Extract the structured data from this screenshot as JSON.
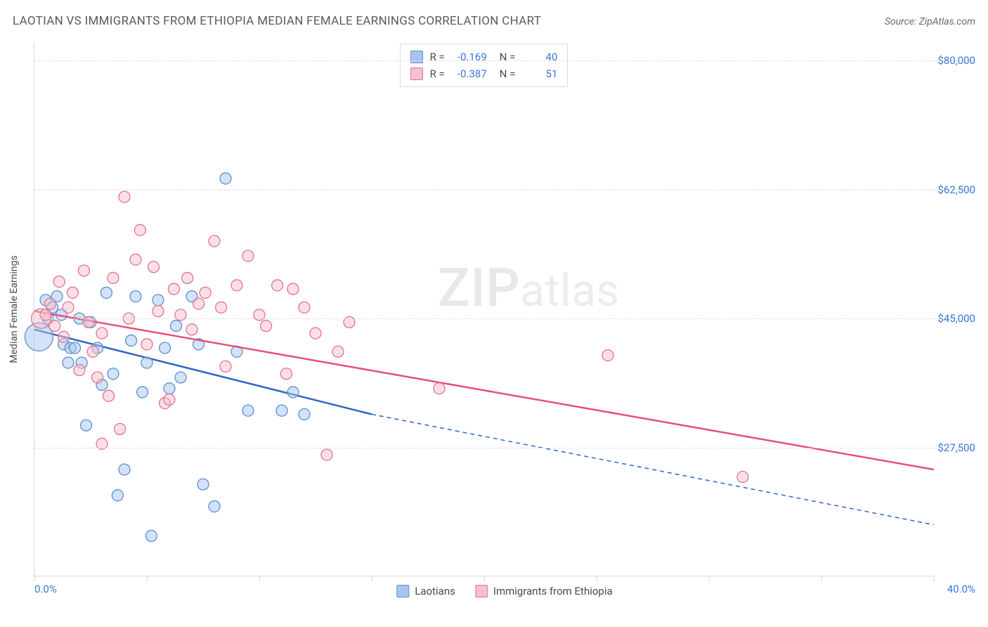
{
  "header": {
    "title": "LAOTIAN VS IMMIGRANTS FROM ETHIOPIA MEDIAN FEMALE EARNINGS CORRELATION CHART",
    "source": "Source: ZipAtlas.com"
  },
  "watermark": {
    "zip": "ZIP",
    "atlas": "atlas"
  },
  "chart": {
    "type": "scatter",
    "background_color": "#ffffff",
    "grid_color": "#dddddd",
    "axis_color": "#d8d8d8",
    "tick_label_color": "#3b76d8",
    "axis_label_color": "#4a4a4a",
    "xlim": [
      0,
      40
    ],
    "ylim": [
      10000,
      82500
    ],
    "x_ticks": [
      0,
      5,
      10,
      15,
      20,
      25,
      30,
      35,
      40
    ],
    "y_ticks": [
      27500,
      45000,
      62500,
      80000
    ],
    "x_tick_labels": {
      "min": "0.0%",
      "max": "40.0%"
    },
    "y_tick_labels": [
      "$27,500",
      "$45,000",
      "$62,500",
      "$80,000"
    ],
    "ylabel": "Median Female Earnings",
    "label_fontsize": 14,
    "tick_fontsize": 15,
    "legend_top": {
      "border_color": "#dcdcdc",
      "rows": [
        {
          "swatch_fill": "#a8c5ed",
          "swatch_stroke": "#5b8fd6",
          "r_label": "R =",
          "r_val": "-0.169",
          "n_label": "N =",
          "n_val": "40"
        },
        {
          "swatch_fill": "#f5c1cd",
          "swatch_stroke": "#e6718f",
          "r_label": "R =",
          "r_val": "-0.387",
          "n_label": "N =",
          "n_val": "51"
        }
      ]
    },
    "legend_bottom": [
      {
        "swatch_fill": "#a8c5ed",
        "swatch_stroke": "#5b8fd6",
        "label": "Laotians"
      },
      {
        "swatch_fill": "#f5c1cd",
        "swatch_stroke": "#e6718f",
        "label": "Immigrants from Ethiopia"
      }
    ],
    "series": [
      {
        "name": "Laotians",
        "marker_fill": "#a8c5ed",
        "marker_stroke": "#5b8fd6",
        "marker_fill_opacity": 0.5,
        "marker_r_default": 8,
        "trend": {
          "color": "#2f66c4",
          "width": 2.5,
          "x1": 0,
          "y1": 43500,
          "x2": 15,
          "y2": 32000,
          "dash_x2": 40,
          "dash_y2": 17000
        },
        "points": [
          {
            "x": 0.2,
            "y": 42500,
            "r": 20
          },
          {
            "x": 0.5,
            "y": 47500
          },
          {
            "x": 0.6,
            "y": 45000
          },
          {
            "x": 0.8,
            "y": 46500
          },
          {
            "x": 1.2,
            "y": 45500
          },
          {
            "x": 1.0,
            "y": 48000
          },
          {
            "x": 1.3,
            "y": 41500
          },
          {
            "x": 1.5,
            "y": 39000
          },
          {
            "x": 1.6,
            "y": 41000
          },
          {
            "x": 1.8,
            "y": 41000
          },
          {
            "x": 2.0,
            "y": 45000
          },
          {
            "x": 2.1,
            "y": 39000
          },
          {
            "x": 2.3,
            "y": 30500
          },
          {
            "x": 2.5,
            "y": 44500
          },
          {
            "x": 2.8,
            "y": 41000
          },
          {
            "x": 3.0,
            "y": 36000
          },
          {
            "x": 3.2,
            "y": 48500
          },
          {
            "x": 3.5,
            "y": 37500
          },
          {
            "x": 3.7,
            "y": 21000
          },
          {
            "x": 4.0,
            "y": 24500
          },
          {
            "x": 4.3,
            "y": 42000
          },
          {
            "x": 4.5,
            "y": 48000
          },
          {
            "x": 4.8,
            "y": 35000
          },
          {
            "x": 5.0,
            "y": 39000
          },
          {
            "x": 5.2,
            "y": 15500
          },
          {
            "x": 5.5,
            "y": 47500
          },
          {
            "x": 5.8,
            "y": 41000
          },
          {
            "x": 6.0,
            "y": 35500
          },
          {
            "x": 6.3,
            "y": 44000
          },
          {
            "x": 6.5,
            "y": 37000
          },
          {
            "x": 7.0,
            "y": 48000
          },
          {
            "x": 7.3,
            "y": 41500
          },
          {
            "x": 7.5,
            "y": 22500
          },
          {
            "x": 8.0,
            "y": 19500
          },
          {
            "x": 8.5,
            "y": 64000
          },
          {
            "x": 9.0,
            "y": 40500
          },
          {
            "x": 9.5,
            "y": 32500
          },
          {
            "x": 11.0,
            "y": 32500
          },
          {
            "x": 11.5,
            "y": 35000
          },
          {
            "x": 12.0,
            "y": 32000
          }
        ]
      },
      {
        "name": "Immigrants from Ethiopia",
        "marker_fill": "#f5c1cd",
        "marker_stroke": "#e6718f",
        "marker_fill_opacity": 0.5,
        "marker_r_default": 8,
        "trend": {
          "color": "#e94f76",
          "width": 2.5,
          "x1": 0,
          "y1": 46000,
          "x2": 40,
          "y2": 24500
        },
        "points": [
          {
            "x": 0.3,
            "y": 45000,
            "r": 14
          },
          {
            "x": 0.5,
            "y": 45500
          },
          {
            "x": 0.7,
            "y": 47000
          },
          {
            "x": 0.9,
            "y": 44000
          },
          {
            "x": 1.1,
            "y": 50000
          },
          {
            "x": 1.3,
            "y": 42500
          },
          {
            "x": 1.5,
            "y": 46500
          },
          {
            "x": 1.7,
            "y": 48500
          },
          {
            "x": 2.0,
            "y": 38000
          },
          {
            "x": 2.2,
            "y": 51500
          },
          {
            "x": 2.4,
            "y": 44500
          },
          {
            "x": 2.6,
            "y": 40500
          },
          {
            "x": 2.8,
            "y": 37000
          },
          {
            "x": 3.0,
            "y": 43000
          },
          {
            "x": 3.3,
            "y": 34500
          },
          {
            "x": 3.5,
            "y": 50500
          },
          {
            "x": 3.8,
            "y": 30000
          },
          {
            "x": 4.0,
            "y": 61500
          },
          {
            "x": 4.2,
            "y": 45000
          },
          {
            "x": 4.5,
            "y": 53000
          },
          {
            "x": 4.7,
            "y": 57000
          },
          {
            "x": 5.0,
            "y": 41500
          },
          {
            "x": 5.3,
            "y": 52000
          },
          {
            "x": 5.5,
            "y": 46000
          },
          {
            "x": 5.8,
            "y": 33500
          },
          {
            "x": 6.0,
            "y": 34000
          },
          {
            "x": 6.2,
            "y": 49000
          },
          {
            "x": 6.5,
            "y": 45500
          },
          {
            "x": 6.8,
            "y": 50500
          },
          {
            "x": 7.0,
            "y": 43500
          },
          {
            "x": 7.3,
            "y": 47000
          },
          {
            "x": 7.6,
            "y": 48500
          },
          {
            "x": 8.0,
            "y": 55500
          },
          {
            "x": 8.3,
            "y": 46500
          },
          {
            "x": 8.5,
            "y": 38500
          },
          {
            "x": 9.0,
            "y": 49500
          },
          {
            "x": 9.5,
            "y": 53500
          },
          {
            "x": 10.0,
            "y": 45500
          },
          {
            "x": 10.3,
            "y": 44000
          },
          {
            "x": 10.8,
            "y": 49500
          },
          {
            "x": 11.2,
            "y": 37500
          },
          {
            "x": 11.5,
            "y": 49000
          },
          {
            "x": 12.0,
            "y": 46500
          },
          {
            "x": 12.5,
            "y": 43000
          },
          {
            "x": 13.0,
            "y": 26500
          },
          {
            "x": 13.5,
            "y": 40500
          },
          {
            "x": 14.0,
            "y": 44500
          },
          {
            "x": 18.0,
            "y": 35500
          },
          {
            "x": 25.5,
            "y": 40000
          },
          {
            "x": 31.5,
            "y": 23500
          },
          {
            "x": 3.0,
            "y": 28000
          }
        ]
      }
    ]
  }
}
